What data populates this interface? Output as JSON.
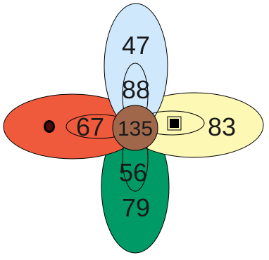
{
  "colors": {
    "red": "#f05a3c",
    "blue": "#cfe8fb",
    "yellow": "#fdf8b4",
    "green": "#009a66",
    "center": "#a0674a",
    "outline": "#000000"
  },
  "regions": {
    "top": "47",
    "top_inner": "88",
    "left_inner": "67",
    "center": "135",
    "right": "83",
    "bottom_inner": "56",
    "bottom": "79"
  },
  "icons": {
    "left": "circle-marker-icon",
    "right": "square-marker-icon"
  }
}
